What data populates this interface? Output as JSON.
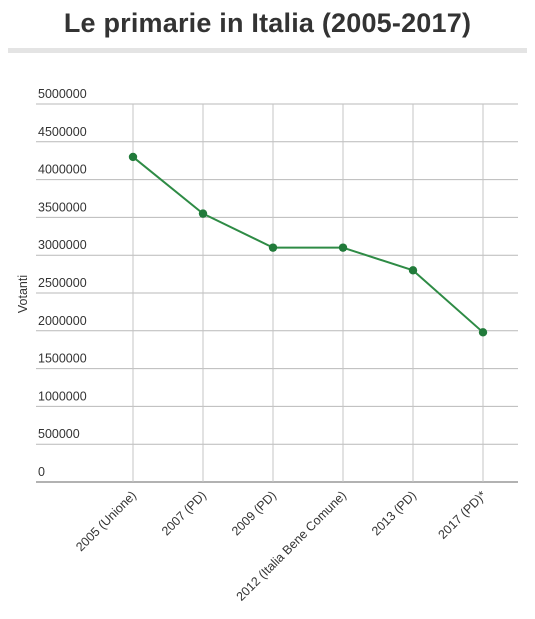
{
  "title": "Le primarie in Italia (2005-2017)",
  "chart_data": {
    "type": "line",
    "title": "Le primarie in Italia (2005-2017)",
    "xlabel": "",
    "ylabel": "Votanti",
    "categories": [
      "2005 (Unione)",
      "2007 (PD)",
      "2009 (PD)",
      "2012 (Italia Bene Comune)",
      "2013 (PD)",
      "2017 (PD)*"
    ],
    "values": [
      4300000,
      3550000,
      3100000,
      3100000,
      2800000,
      1980000
    ],
    "ylim": [
      0,
      5000000
    ],
    "yticks": [
      "0",
      "500000",
      "1000000",
      "1500000",
      "2000000",
      "2500000",
      "3000000",
      "3500000",
      "4000000",
      "4500000",
      "5000000"
    ],
    "grid": true,
    "line_color": "#2e8b45",
    "marker_color": "#217a3a"
  }
}
